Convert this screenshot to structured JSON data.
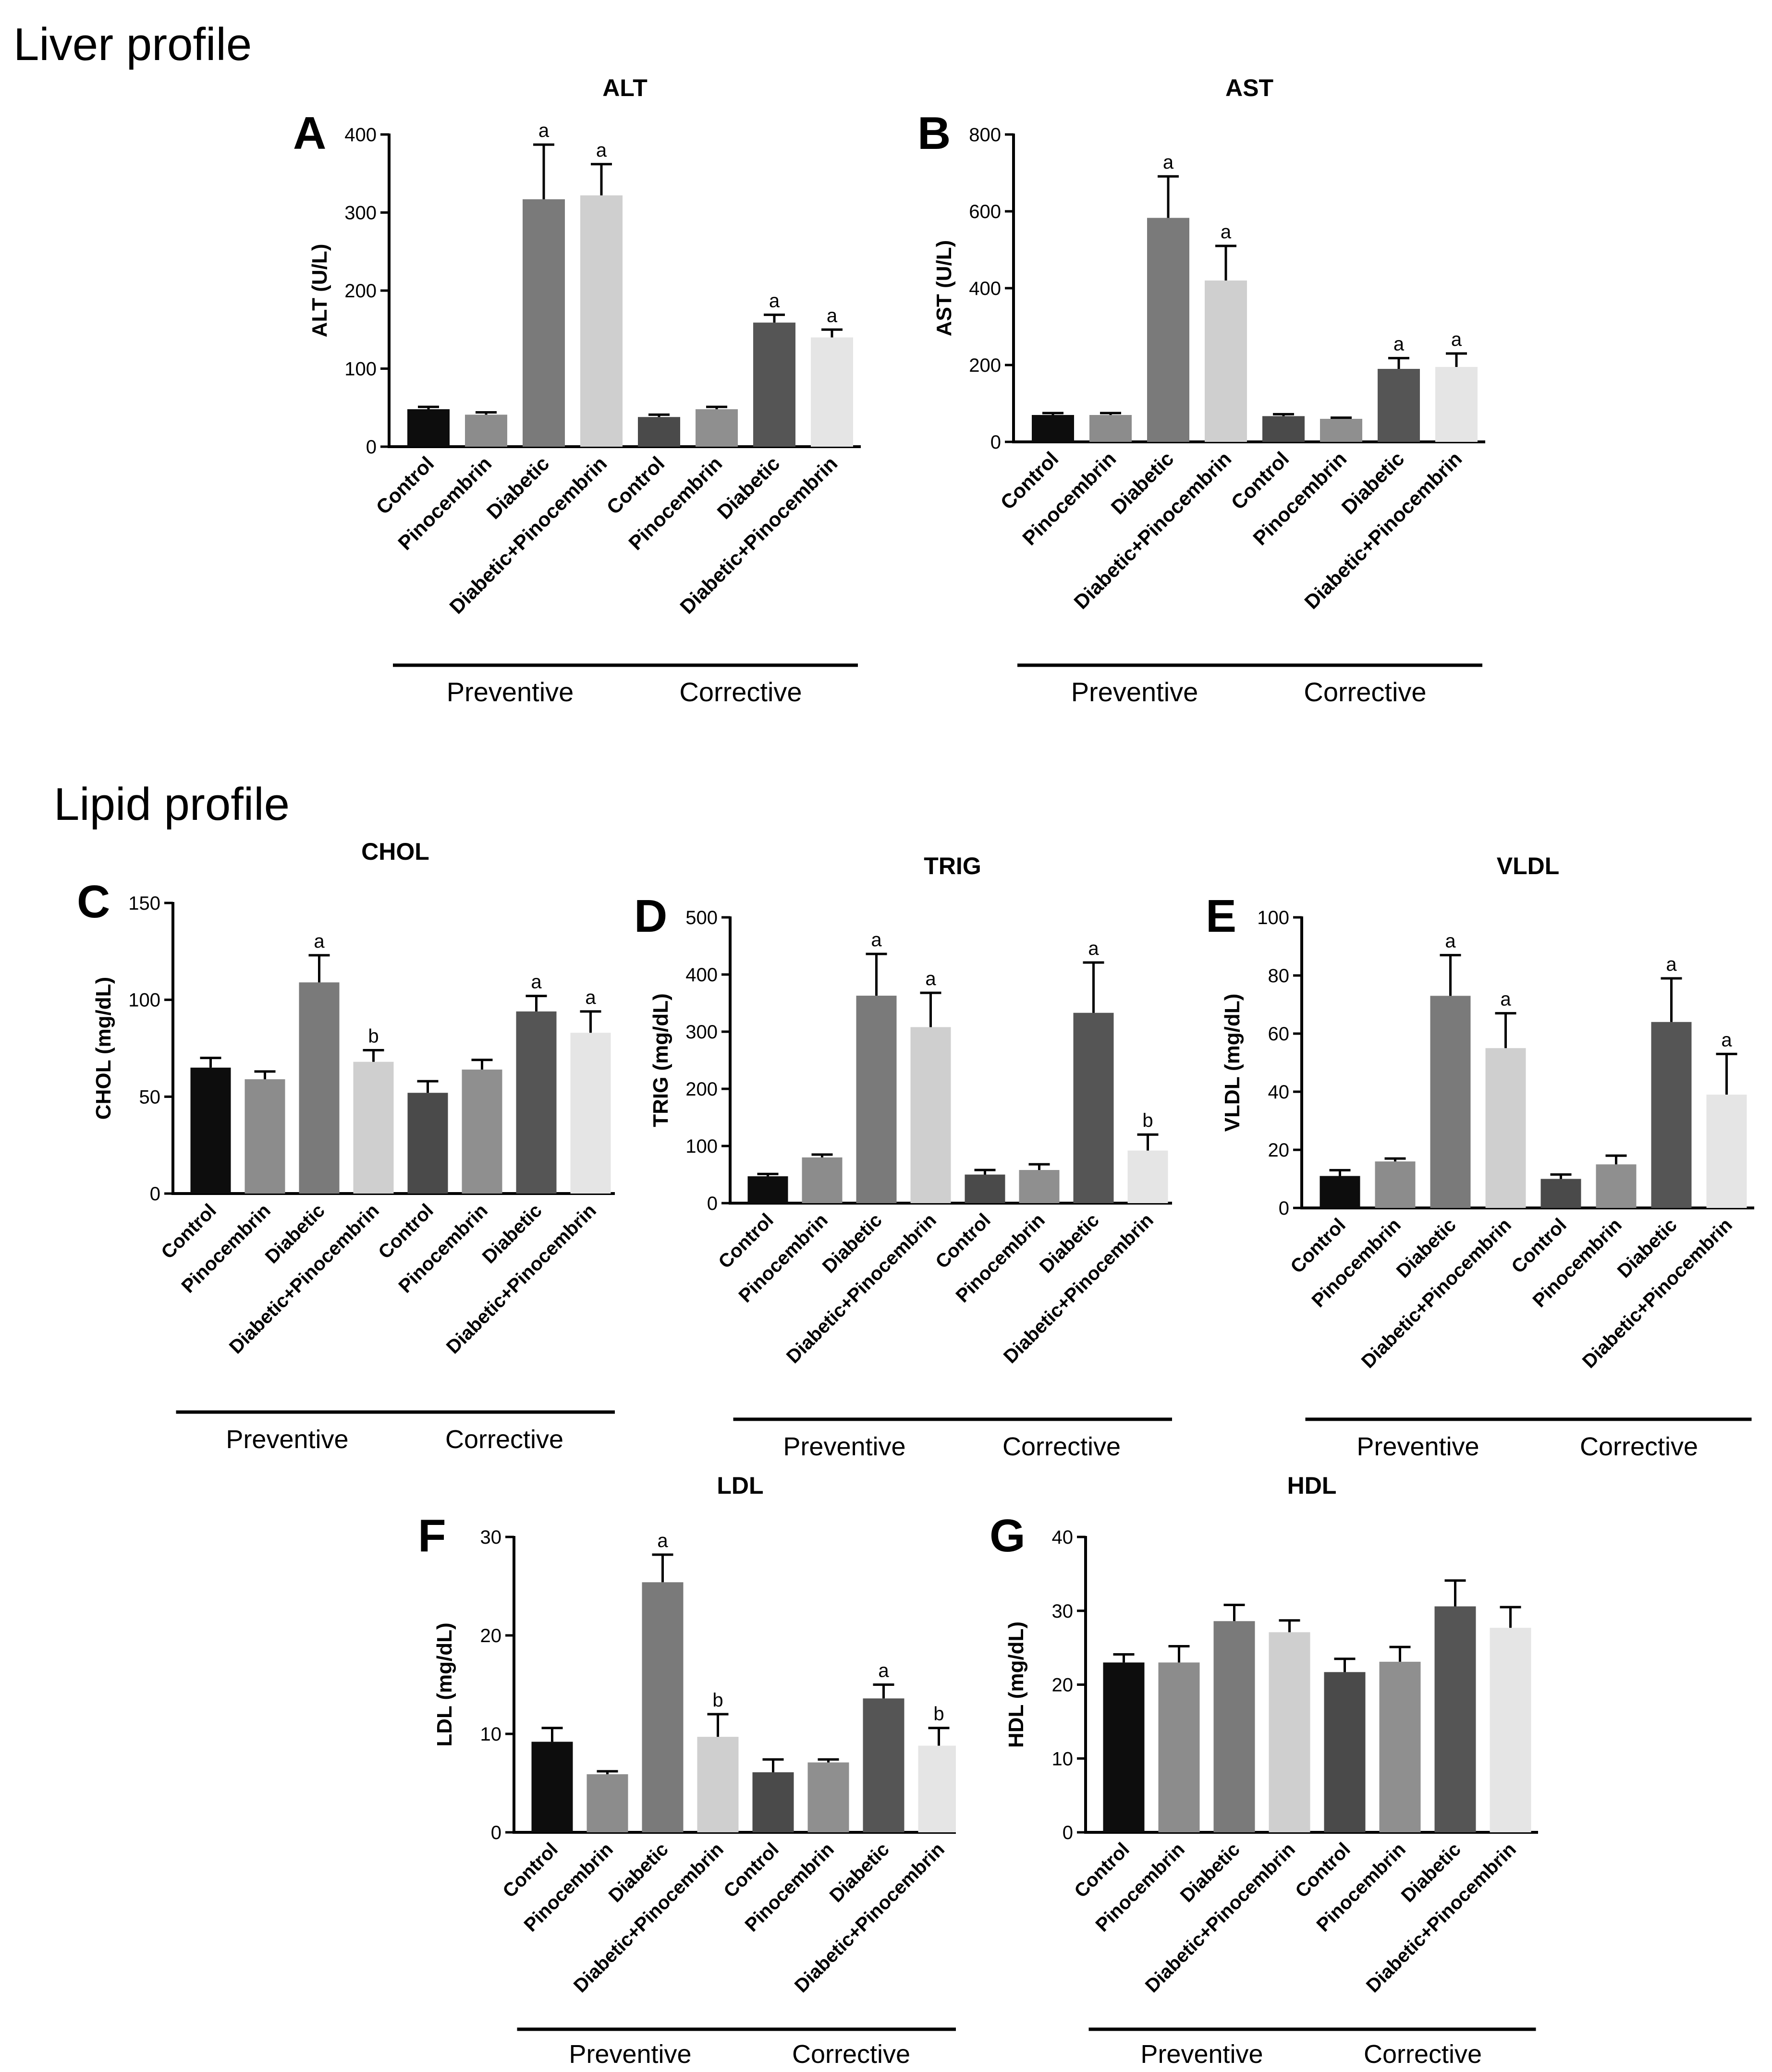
{
  "sections": {
    "liver": "Liver profile",
    "lipid": "Lipid profile"
  },
  "group_labels": {
    "preventive": "Preventive",
    "corrective": "Corrective"
  },
  "chart_data": [
    {
      "id": "alt",
      "type": "bar",
      "panel": "A",
      "title": "ALT",
      "ylabel": "ALT (U/L)",
      "ylim": [
        0,
        400
      ],
      "yticks": [
        0,
        100,
        200,
        300,
        400
      ],
      "categories": [
        "Control",
        "Pinocembrin",
        "Diabetic",
        "Diabetic+Pinocembrin",
        "Control",
        "Pinocembrin",
        "Diabetic",
        "Diabetic+Pinocembrin"
      ],
      "groups": [
        "Preventive",
        "Corrective"
      ],
      "values": [
        48,
        41,
        317,
        322,
        38,
        48,
        159,
        140
      ],
      "errors": [
        3,
        3,
        70,
        40,
        3,
        3,
        10,
        10
      ],
      "annotations": [
        "",
        "",
        "a",
        "a",
        "",
        "",
        "a",
        "a"
      ],
      "colors": [
        "#0d0d0d",
        "#8c8c8c",
        "#7a7a7a",
        "#cfcfcf",
        "#4a4a4a",
        "#8f8f8f",
        "#555555",
        "#e5e5e5"
      ]
    },
    {
      "id": "ast",
      "type": "bar",
      "panel": "B",
      "title": "AST",
      "ylabel": "AST (U/L)",
      "ylim": [
        0,
        800
      ],
      "yticks": [
        0,
        200,
        400,
        600,
        800
      ],
      "categories": [
        "Control",
        "Pinocembrin",
        "Diabetic",
        "Diabetic+Pinocembrin",
        "Control",
        "Pinocembrin",
        "Diabetic",
        "Diabetic+Pinocembrin"
      ],
      "groups": [
        "Preventive",
        "Corrective"
      ],
      "values": [
        70,
        70,
        583,
        420,
        67,
        60,
        190,
        195
      ],
      "errors": [
        5,
        5,
        108,
        90,
        5,
        3,
        28,
        35
      ],
      "annotations": [
        "",
        "",
        "a",
        "a",
        "",
        "",
        "a",
        "a"
      ],
      "colors": [
        "#0d0d0d",
        "#8c8c8c",
        "#7a7a7a",
        "#cfcfcf",
        "#4a4a4a",
        "#8f8f8f",
        "#555555",
        "#e5e5e5"
      ]
    },
    {
      "id": "chol",
      "type": "bar",
      "panel": "C",
      "title": "CHOL",
      "ylabel": "CHOL (mg/dL)",
      "ylim": [
        0,
        150
      ],
      "yticks": [
        0,
        50,
        100,
        150
      ],
      "categories": [
        "Control",
        "Pinocembrin",
        "Diabetic",
        "Diabetic+Pinocembrin",
        "Control",
        "Pinocembrin",
        "Diabetic",
        "Diabetic+Pinocembrin"
      ],
      "groups": [
        "Preventive",
        "Corrective"
      ],
      "values": [
        65,
        59,
        109,
        68,
        52,
        64,
        94,
        83
      ],
      "errors": [
        5,
        4,
        14,
        6,
        6,
        5,
        8,
        11
      ],
      "annotations": [
        "",
        "",
        "a",
        "b",
        "",
        "",
        "a",
        "a"
      ],
      "colors": [
        "#0d0d0d",
        "#8c8c8c",
        "#7a7a7a",
        "#cfcfcf",
        "#4a4a4a",
        "#8f8f8f",
        "#555555",
        "#e5e5e5"
      ]
    },
    {
      "id": "trig",
      "type": "bar",
      "panel": "D",
      "title": "TRIG",
      "ylabel": "TRIG (mg/dL)",
      "ylim": [
        0,
        500
      ],
      "yticks": [
        0,
        100,
        200,
        300,
        400,
        500
      ],
      "categories": [
        "Control",
        "Pinocembrin",
        "Diabetic",
        "Diabetic+Pinocembrin",
        "Control",
        "Pinocembrin",
        "Diabetic",
        "Diabetic+Pinocembrin"
      ],
      "groups": [
        "Preventive",
        "Corrective"
      ],
      "values": [
        47,
        80,
        363,
        308,
        50,
        58,
        333,
        92
      ],
      "errors": [
        4,
        5,
        73,
        60,
        8,
        10,
        88,
        28
      ],
      "annotations": [
        "",
        "",
        "a",
        "a",
        "",
        "",
        "a",
        "b"
      ],
      "colors": [
        "#0d0d0d",
        "#8c8c8c",
        "#7a7a7a",
        "#cfcfcf",
        "#4a4a4a",
        "#8f8f8f",
        "#555555",
        "#e5e5e5"
      ]
    },
    {
      "id": "vldl",
      "type": "bar",
      "panel": "E",
      "title": "VLDL",
      "ylabel": "VLDL (mg/dL)",
      "ylim": [
        0,
        100
      ],
      "yticks": [
        0,
        20,
        40,
        60,
        80,
        100
      ],
      "categories": [
        "Control",
        "Pinocembrin",
        "Diabetic",
        "Diabetic+Pinocembrin",
        "Control",
        "Pinocembrin",
        "Diabetic",
        "Diabetic+Pinocembrin"
      ],
      "groups": [
        "Preventive",
        "Corrective"
      ],
      "values": [
        11,
        16,
        73,
        55,
        10,
        15,
        64,
        39
      ],
      "errors": [
        2,
        1,
        14,
        12,
        1.5,
        3,
        15,
        14
      ],
      "annotations": [
        "",
        "",
        "a",
        "a",
        "",
        "",
        "a",
        "a"
      ],
      "colors": [
        "#0d0d0d",
        "#8c8c8c",
        "#7a7a7a",
        "#cfcfcf",
        "#4a4a4a",
        "#8f8f8f",
        "#555555",
        "#e5e5e5"
      ]
    },
    {
      "id": "ldl",
      "type": "bar",
      "panel": "F",
      "title": "LDL",
      "ylabel": "LDL (mg/dL)",
      "ylim": [
        0,
        30
      ],
      "yticks": [
        0,
        10,
        20,
        30
      ],
      "categories": [
        "Control",
        "Pinocembrin",
        "Diabetic",
        "Diabetic+Pinocembrin",
        "Control",
        "Pinocembrin",
        "Diabetic",
        "Diabetic+Pinocembrin"
      ],
      "groups": [
        "Preventive",
        "Corrective"
      ],
      "values": [
        9.2,
        5.9,
        25.4,
        9.7,
        6.1,
        7.1,
        13.6,
        8.8
      ],
      "errors": [
        1.4,
        0.3,
        2.8,
        2.3,
        1.3,
        0.3,
        1.4,
        1.8
      ],
      "annotations": [
        "",
        "",
        "a",
        "b",
        "",
        "",
        "a",
        "b"
      ],
      "colors": [
        "#0d0d0d",
        "#8c8c8c",
        "#7a7a7a",
        "#cfcfcf",
        "#4a4a4a",
        "#8f8f8f",
        "#555555",
        "#e5e5e5"
      ]
    },
    {
      "id": "hdl",
      "type": "bar",
      "panel": "G",
      "title": "HDL",
      "ylabel": "HDL (mg/dL)",
      "ylim": [
        0,
        40
      ],
      "yticks": [
        0,
        10,
        20,
        30,
        40
      ],
      "categories": [
        "Control",
        "Pinocembrin",
        "Diabetic",
        "Diabetic+Pinocembrin",
        "Control",
        "Pinocembrin",
        "Diabetic",
        "Diabetic+Pinocembrin"
      ],
      "groups": [
        "Preventive",
        "Corrective"
      ],
      "values": [
        23,
        23,
        28.6,
        27.1,
        21.7,
        23.1,
        30.6,
        27.7
      ],
      "errors": [
        1.1,
        2.2,
        2.2,
        1.6,
        1.8,
        2.0,
        3.5,
        2.8
      ],
      "annotations": [
        "",
        "",
        "",
        "",
        "",
        "",
        "",
        ""
      ],
      "colors": [
        "#0d0d0d",
        "#8c8c8c",
        "#7a7a7a",
        "#cfcfcf",
        "#4a4a4a",
        "#8f8f8f",
        "#555555",
        "#e5e5e5"
      ]
    }
  ]
}
